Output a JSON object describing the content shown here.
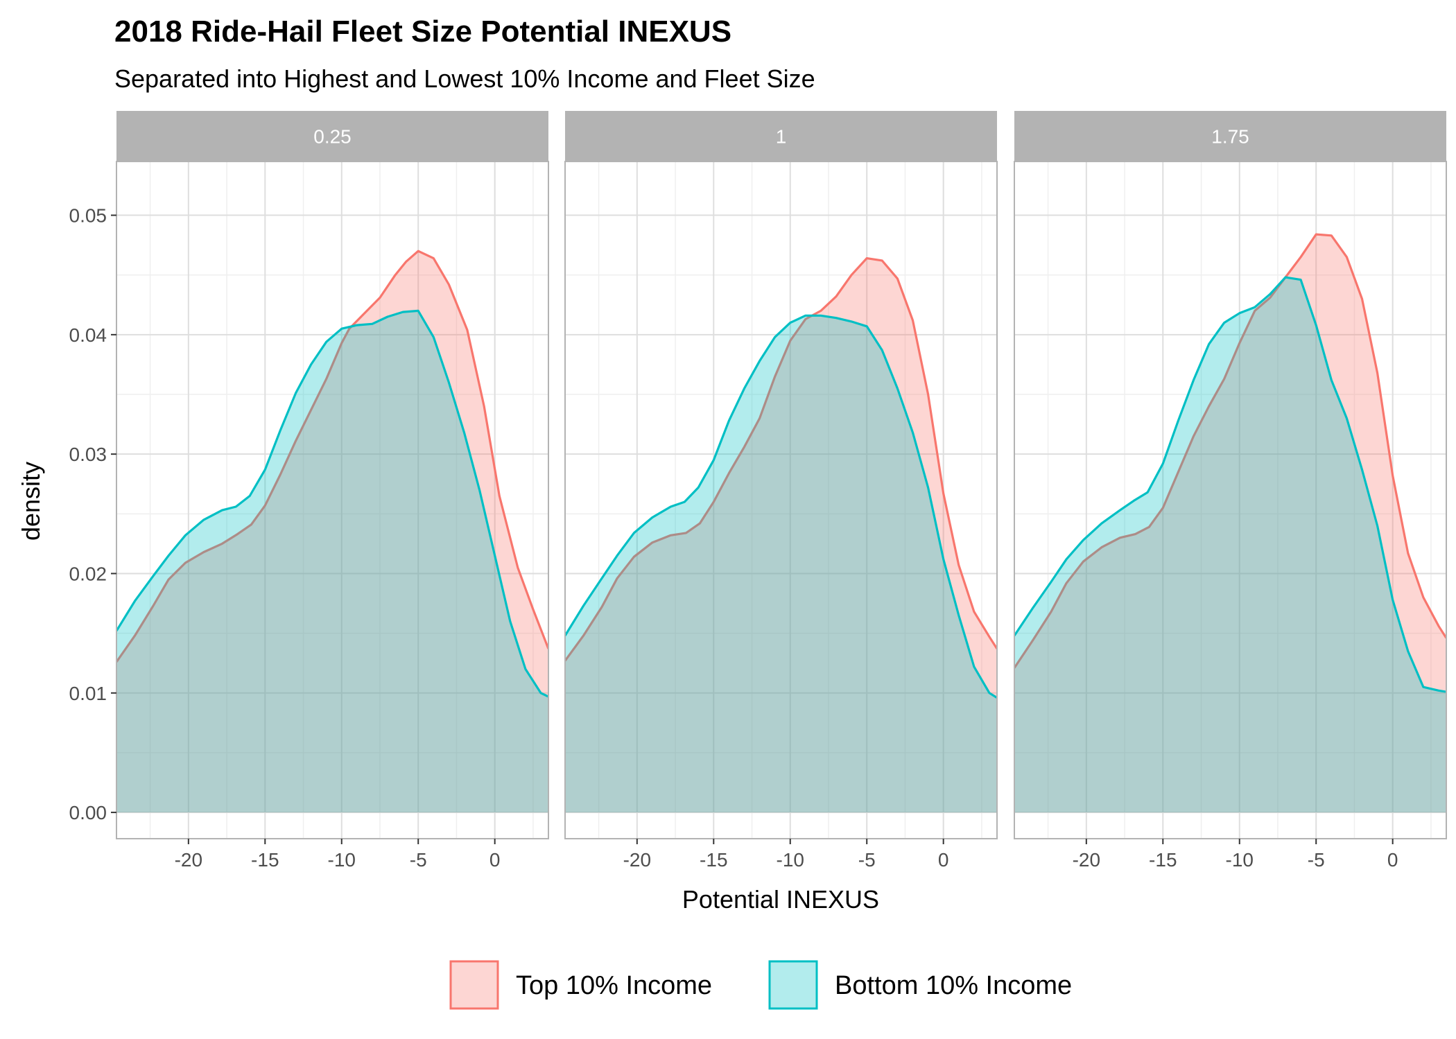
{
  "chart_data": {
    "type": "area",
    "title": "2018 Ride-Hail Fleet Size Potential INEXUS",
    "subtitle": "Separated into Highest and Lowest 10% Income and Fleet Size",
    "xlabel": "Potential INEXUS",
    "ylabel": "density",
    "xlim": [
      -24.7,
      3.5
    ],
    "ylim": [
      -0.0022,
      0.0545
    ],
    "x_ticks": [
      -20,
      -15,
      -10,
      -5,
      0
    ],
    "x_tick_labels": [
      "-20",
      "-15",
      "-10",
      "-5",
      "0"
    ],
    "y_ticks": [
      0,
      0.01,
      0.02,
      0.03,
      0.04,
      0.05
    ],
    "y_tick_labels": [
      "0.00",
      "0.01",
      "0.02",
      "0.03",
      "0.04",
      "0.05"
    ],
    "grid": true,
    "legend_position": "bottom",
    "colors": {
      "top_line": "#F8766D",
      "top_fill": "#F8766D",
      "bottom_line": "#00BFC4",
      "bottom_fill": "#00BFC4",
      "strip_bg": "#B3B3B3",
      "panel_border": "#B3B3B3",
      "grid_major": "#DEDEDE",
      "grid_minor": "#EFEFEF"
    },
    "legend": [
      {
        "key": "top",
        "label": "Top 10% Income"
      },
      {
        "key": "bottom",
        "label": "Bottom 10% Income"
      }
    ],
    "panels": [
      {
        "facet_label": "0.25",
        "series": {
          "top": {
            "x": [
              -24.7,
              -23.5,
              -22.3,
              -21.3,
              -20.2,
              -19.0,
              -17.8,
              -16.8,
              -15.9,
              -15.0,
              -14.0,
              -13.0,
              -12.0,
              -11.0,
              -10.0,
              -9.5,
              -8.5,
              -7.5,
              -6.5,
              -5.8,
              -5.0,
              -4.0,
              -3.0,
              -1.8,
              -0.7,
              0.3,
              1.5,
              2.5,
              3.5
            ],
            "y": [
              0.0126,
              0.0148,
              0.0173,
              0.0195,
              0.0209,
              0.0218,
              0.0225,
              0.0233,
              0.0241,
              0.0257,
              0.0283,
              0.0311,
              0.0337,
              0.0363,
              0.0393,
              0.0405,
              0.0418,
              0.0431,
              0.045,
              0.0461,
              0.047,
              0.0464,
              0.0442,
              0.0404,
              0.034,
              0.0265,
              0.0205,
              0.017,
              0.0137
            ]
          },
          "bottom": {
            "x": [
              -24.7,
              -23.5,
              -22.3,
              -21.3,
              -20.2,
              -19.0,
              -17.8,
              -16.9,
              -16.0,
              -15.0,
              -14.0,
              -13.0,
              -12.0,
              -11.0,
              -10.0,
              -9.0,
              -8.0,
              -7.0,
              -6.0,
              -5.0,
              -4.0,
              -3.0,
              -2.0,
              -1.0,
              0.0,
              1.0,
              2.0,
              3.0,
              3.5
            ],
            "y": [
              0.0152,
              0.0177,
              0.0198,
              0.0215,
              0.0232,
              0.0245,
              0.0253,
              0.0256,
              0.0265,
              0.0287,
              0.032,
              0.0351,
              0.0375,
              0.0394,
              0.0405,
              0.0408,
              0.0409,
              0.0415,
              0.0419,
              0.042,
              0.0398,
              0.036,
              0.0318,
              0.027,
              0.0215,
              0.016,
              0.012,
              0.01,
              0.0097
            ]
          }
        }
      },
      {
        "facet_label": "1",
        "series": {
          "top": {
            "x": [
              -24.7,
              -23.5,
              -22.3,
              -21.3,
              -20.2,
              -19.0,
              -17.8,
              -16.8,
              -15.9,
              -15.0,
              -14.0,
              -13.0,
              -12.0,
              -11.0,
              -10.0,
              -9.0,
              -8.0,
              -7.0,
              -6.0,
              -5.0,
              -4.0,
              -3.0,
              -2.0,
              -1.0,
              0.0,
              1.0,
              2.0,
              3.0,
              3.5
            ],
            "y": [
              0.0127,
              0.0148,
              0.0172,
              0.0196,
              0.0214,
              0.0226,
              0.0232,
              0.0234,
              0.0242,
              0.026,
              0.0284,
              0.0306,
              0.033,
              0.0365,
              0.0395,
              0.0413,
              0.042,
              0.0432,
              0.045,
              0.0464,
              0.0462,
              0.0447,
              0.0412,
              0.035,
              0.0267,
              0.0207,
              0.0168,
              0.0147,
              0.0137
            ]
          },
          "bottom": {
            "x": [
              -24.7,
              -23.5,
              -22.3,
              -21.3,
              -20.2,
              -19.0,
              -17.8,
              -16.9,
              -16.0,
              -15.0,
              -14.0,
              -13.0,
              -12.0,
              -11.0,
              -10.0,
              -9.0,
              -8.0,
              -7.0,
              -6.0,
              -5.0,
              -4.0,
              -3.0,
              -2.0,
              -1.0,
              0.0,
              1.0,
              2.0,
              3.0,
              3.5
            ],
            "y": [
              0.0148,
              0.0173,
              0.0196,
              0.0215,
              0.0234,
              0.0247,
              0.0256,
              0.026,
              0.0272,
              0.0295,
              0.0328,
              0.0355,
              0.0378,
              0.0398,
              0.041,
              0.0416,
              0.0416,
              0.0414,
              0.0411,
              0.0407,
              0.0387,
              0.0355,
              0.0318,
              0.0272,
              0.0212,
              0.0165,
              0.0122,
              0.01,
              0.0096
            ]
          }
        }
      },
      {
        "facet_label": "1.75",
        "series": {
          "top": {
            "x": [
              -24.7,
              -23.5,
              -22.3,
              -21.3,
              -20.2,
              -19.0,
              -17.8,
              -16.8,
              -15.9,
              -15.0,
              -14.0,
              -13.0,
              -12.0,
              -11.0,
              -10.0,
              -9.0,
              -8.0,
              -7.0,
              -6.0,
              -5.0,
              -4.0,
              -3.0,
              -2.0,
              -1.0,
              0.0,
              1.0,
              2.0,
              3.0,
              3.5
            ],
            "y": [
              0.0121,
              0.0144,
              0.0168,
              0.0192,
              0.021,
              0.0222,
              0.023,
              0.0233,
              0.0239,
              0.0255,
              0.0285,
              0.0315,
              0.034,
              0.0363,
              0.0393,
              0.042,
              0.0431,
              0.0448,
              0.0465,
              0.0484,
              0.0483,
              0.0465,
              0.043,
              0.0368,
              0.0282,
              0.0217,
              0.018,
              0.0156,
              0.0146
            ]
          },
          "bottom": {
            "x": [
              -24.7,
              -23.5,
              -22.3,
              -21.3,
              -20.2,
              -19.0,
              -17.8,
              -16.9,
              -16.0,
              -15.0,
              -14.0,
              -13.0,
              -12.0,
              -11.0,
              -10.0,
              -9.0,
              -8.0,
              -7.0,
              -6.0,
              -5.0,
              -4.0,
              -3.0,
              -2.0,
              -1.0,
              0.0,
              1.0,
              2.0,
              3.0,
              3.5
            ],
            "y": [
              0.0148,
              0.0171,
              0.0193,
              0.0212,
              0.0228,
              0.0242,
              0.0253,
              0.0261,
              0.0268,
              0.0292,
              0.0328,
              0.0362,
              0.0392,
              0.041,
              0.0418,
              0.0423,
              0.0434,
              0.0448,
              0.0446,
              0.0408,
              0.0362,
              0.033,
              0.0287,
              0.024,
              0.0178,
              0.0135,
              0.0105,
              0.0102,
              0.0101
            ]
          }
        }
      }
    ]
  }
}
